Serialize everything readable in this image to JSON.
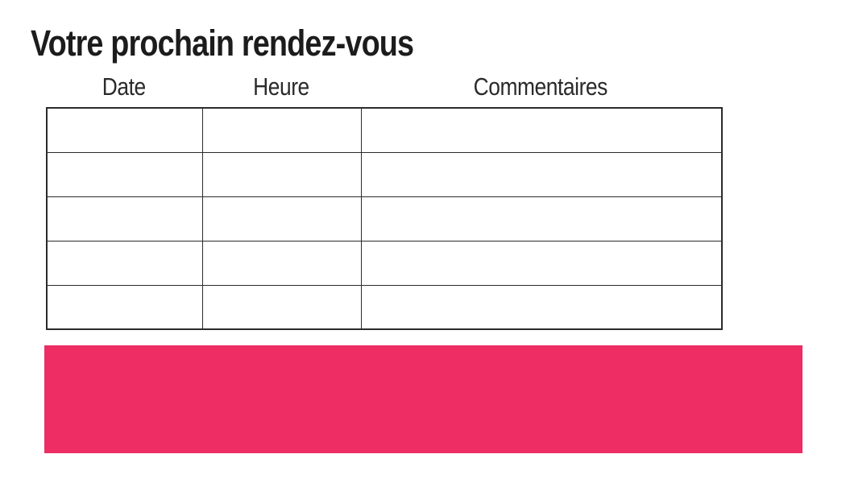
{
  "page": {
    "title": "Votre prochain rendez-vous"
  },
  "table": {
    "columns": [
      {
        "label": "Date"
      },
      {
        "label": "Heure"
      },
      {
        "label": "Commentaires"
      }
    ],
    "rows": [
      [
        "",
        "",
        ""
      ],
      [
        "",
        "",
        ""
      ],
      [
        "",
        "",
        ""
      ],
      [
        "",
        "",
        ""
      ],
      [
        "",
        "",
        ""
      ]
    ]
  },
  "banner": {
    "text": ""
  },
  "colors": {
    "accent_pink": "#ED2D64",
    "table_border": "#2B2B2B",
    "title_text": "#1C1C1C",
    "header_text": "#2A2A2A",
    "background": "#FFFFFF"
  }
}
